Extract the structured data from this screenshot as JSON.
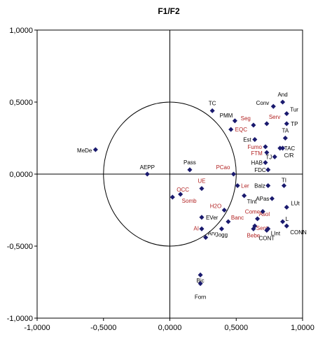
{
  "chart_data": {
    "type": "scatter",
    "title": "F1/F2",
    "xlabel": "",
    "ylabel": "",
    "xlim": [
      -1.0,
      1.0
    ],
    "ylim": [
      -1.0,
      1.0
    ],
    "x_ticks": [
      "-1,0000",
      "-0,5000",
      "0,0000",
      "0,5000",
      "1,0000"
    ],
    "y_ticks": [
      "1,0000",
      "0,5000",
      "0,0000",
      "-0,5000",
      "-1,0000"
    ],
    "grid": false,
    "legend": "none",
    "correlation_circle_radius": 0.5,
    "colors": {
      "black_label": "#000000",
      "red_label": "#b22222",
      "marker": "#1a1a6e"
    },
    "points": [
      {
        "label": "MeDe",
        "x": -0.56,
        "y": 0.17,
        "color": "black"
      },
      {
        "label": "AEPP",
        "x": -0.17,
        "y": 0.0,
        "color": "black"
      },
      {
        "label": "Pass",
        "x": 0.15,
        "y": 0.03,
        "color": "black"
      },
      {
        "label": "TC",
        "x": 0.32,
        "y": 0.44,
        "color": "black"
      },
      {
        "label": "PMM",
        "x": 0.49,
        "y": 0.37,
        "color": "black"
      },
      {
        "label": "EQC",
        "x": 0.46,
        "y": 0.31,
        "color": "red"
      },
      {
        "label": "PCao",
        "x": 0.48,
        "y": 0.0,
        "color": "red"
      },
      {
        "label": "UE",
        "x": 0.24,
        "y": -0.1,
        "color": "red"
      },
      {
        "label": "OCC",
        "x": 0.02,
        "y": -0.16,
        "color": "red"
      },
      {
        "label": "Somb",
        "x": 0.08,
        "y": -0.14,
        "color": "red"
      },
      {
        "label": "Ler",
        "x": 0.51,
        "y": -0.08,
        "color": "red"
      },
      {
        "label": "TInt",
        "x": 0.56,
        "y": -0.15,
        "color": "black"
      },
      {
        "label": "H2O",
        "x": 0.41,
        "y": -0.25,
        "color": "red"
      },
      {
        "label": "EVer",
        "x": 0.24,
        "y": -0.3,
        "color": "black"
      },
      {
        "label": "AI",
        "x": 0.24,
        "y": -0.38,
        "color": "red"
      },
      {
        "label": "Banc",
        "x": 0.44,
        "y": -0.33,
        "color": "red"
      },
      {
        "label": "Arv",
        "x": 0.27,
        "y": -0.44,
        "color": "black"
      },
      {
        "label": "Jogg",
        "x": 0.39,
        "y": -0.38,
        "color": "black"
      },
      {
        "label": "Bic",
        "x": 0.23,
        "y": -0.7,
        "color": "black"
      },
      {
        "label": "Forn",
        "x": 0.23,
        "y": -0.76,
        "color": "black"
      },
      {
        "label": "Conv",
        "x": 0.78,
        "y": 0.47,
        "color": "black"
      },
      {
        "label": "And",
        "x": 0.85,
        "y": 0.5,
        "color": "black"
      },
      {
        "label": "Tur",
        "x": 0.88,
        "y": 0.42,
        "color": "black"
      },
      {
        "label": "Seg",
        "x": 0.63,
        "y": 0.34,
        "color": "red"
      },
      {
        "label": "Serv",
        "x": 0.73,
        "y": 0.35,
        "color": "red"
      },
      {
        "label": "TP",
        "x": 0.88,
        "y": 0.35,
        "color": "black"
      },
      {
        "label": "TA",
        "x": 0.87,
        "y": 0.25,
        "color": "black"
      },
      {
        "label": "Est",
        "x": 0.64,
        "y": 0.24,
        "color": "black"
      },
      {
        "label": "Fumo",
        "x": 0.72,
        "y": 0.19,
        "color": "red"
      },
      {
        "label": "TAC",
        "x": 0.83,
        "y": 0.18,
        "color": "black"
      },
      {
        "label": "FTM",
        "x": 0.73,
        "y": 0.15,
        "color": "red"
      },
      {
        "label": "C/R",
        "x": 0.85,
        "y": 0.18,
        "color": "black"
      },
      {
        "label": "TJ",
        "x": 0.79,
        "y": 0.12,
        "color": "black"
      },
      {
        "label": "HAB",
        "x": 0.72,
        "y": 0.08,
        "color": "black"
      },
      {
        "label": "FDC",
        "x": 0.74,
        "y": 0.03,
        "color": "black"
      },
      {
        "label": "Balz",
        "x": 0.74,
        "y": -0.08,
        "color": "black"
      },
      {
        "label": "TI",
        "x": 0.86,
        "y": -0.08,
        "color": "black"
      },
      {
        "label": "APas",
        "x": 0.77,
        "y": -0.17,
        "color": "black"
      },
      {
        "label": "LUt",
        "x": 0.88,
        "y": -0.23,
        "color": "black"
      },
      {
        "label": "Come",
        "x": 0.7,
        "y": -0.26,
        "color": "red"
      },
      {
        "label": "Asol",
        "x": 0.66,
        "y": -0.31,
        "color": "red"
      },
      {
        "label": "Sent",
        "x": 0.64,
        "y": -0.36,
        "color": "red"
      },
      {
        "label": "Bebe",
        "x": 0.63,
        "y": -0.38,
        "color": "red"
      },
      {
        "label": "L",
        "x": 0.85,
        "y": -0.33,
        "color": "black"
      },
      {
        "label": "LInt",
        "x": 0.74,
        "y": -0.38,
        "color": "black"
      },
      {
        "label": "CONN",
        "x": 0.88,
        "y": -0.36,
        "color": "black"
      },
      {
        "label": "CONT",
        "x": 0.73,
        "y": -0.39,
        "color": "black"
      }
    ]
  }
}
